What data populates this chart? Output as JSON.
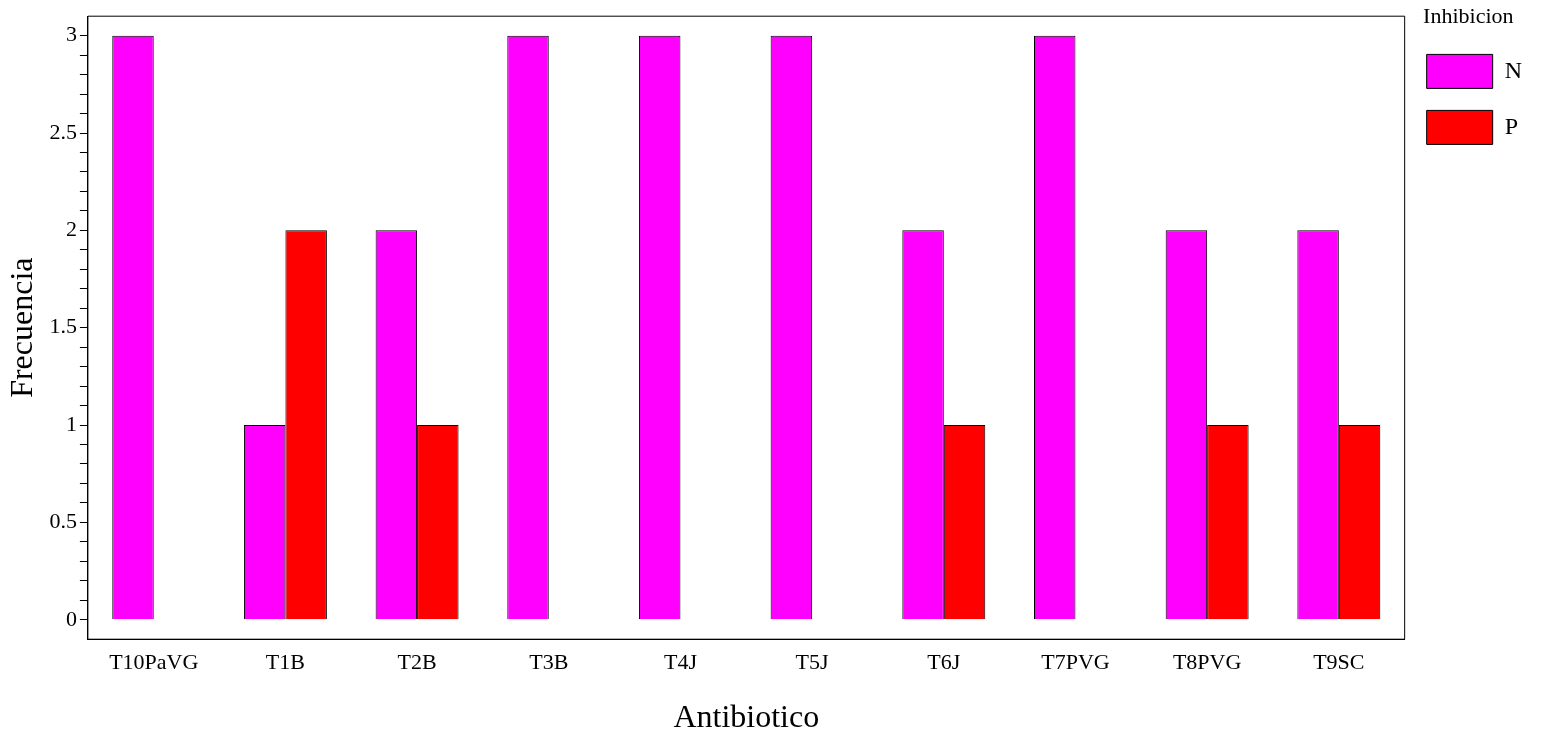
{
  "chart_data": {
    "type": "bar",
    "xlabel": "Antibiotico",
    "ylabel": "Frecuencia",
    "legend_title": "Inhibicion",
    "categories": [
      "T10PaVG",
      "T1B",
      "T2B",
      "T3B",
      "T4J",
      "T5J",
      "T6J",
      "T7PVG",
      "T8PVG",
      "T9SC"
    ],
    "series": [
      {
        "name": "N",
        "color": "#ff00ff",
        "values": [
          3,
          1,
          2,
          3,
          3,
          3,
          2,
          3,
          2,
          2
        ]
      },
      {
        "name": "P",
        "color": "#ff0000",
        "values": [
          0,
          2,
          1,
          0,
          0,
          0,
          1,
          0,
          1,
          1
        ]
      }
    ],
    "ylim": [
      -0.1,
      3.1
    ],
    "yticks": [
      0,
      {
        "value": 0.1,
        "label": null
      },
      {
        "value": 0.2,
        "label": null
      },
      {
        "value": 0.3,
        "label": null
      },
      {
        "value": 0.4,
        "label": null
      },
      0.5,
      {
        "value": 0.6,
        "label": null
      },
      {
        "value": 0.7,
        "label": null
      },
      {
        "value": 0.8,
        "label": null
      },
      {
        "value": 0.9,
        "label": null
      },
      1,
      {
        "value": 1.1,
        "label": null
      },
      {
        "value": 1.2,
        "label": null
      },
      {
        "value": 1.3,
        "label": null
      },
      {
        "value": 1.4,
        "label": null
      },
      1.5,
      {
        "value": 1.6,
        "label": null
      },
      {
        "value": 1.7,
        "label": null
      },
      {
        "value": 1.8,
        "label": null
      },
      {
        "value": 1.9,
        "label": null
      },
      2,
      {
        "value": 2.1,
        "label": null
      },
      {
        "value": 2.2,
        "label": null
      },
      {
        "value": 2.3,
        "label": null
      },
      {
        "value": 2.4,
        "label": null
      },
      2.5,
      {
        "value": 2.6,
        "label": null
      },
      {
        "value": 2.7,
        "label": null
      },
      {
        "value": 2.8,
        "label": null
      },
      {
        "value": 2.9,
        "label": null
      },
      3
    ],
    "grid": false,
    "legend": "top right"
  }
}
